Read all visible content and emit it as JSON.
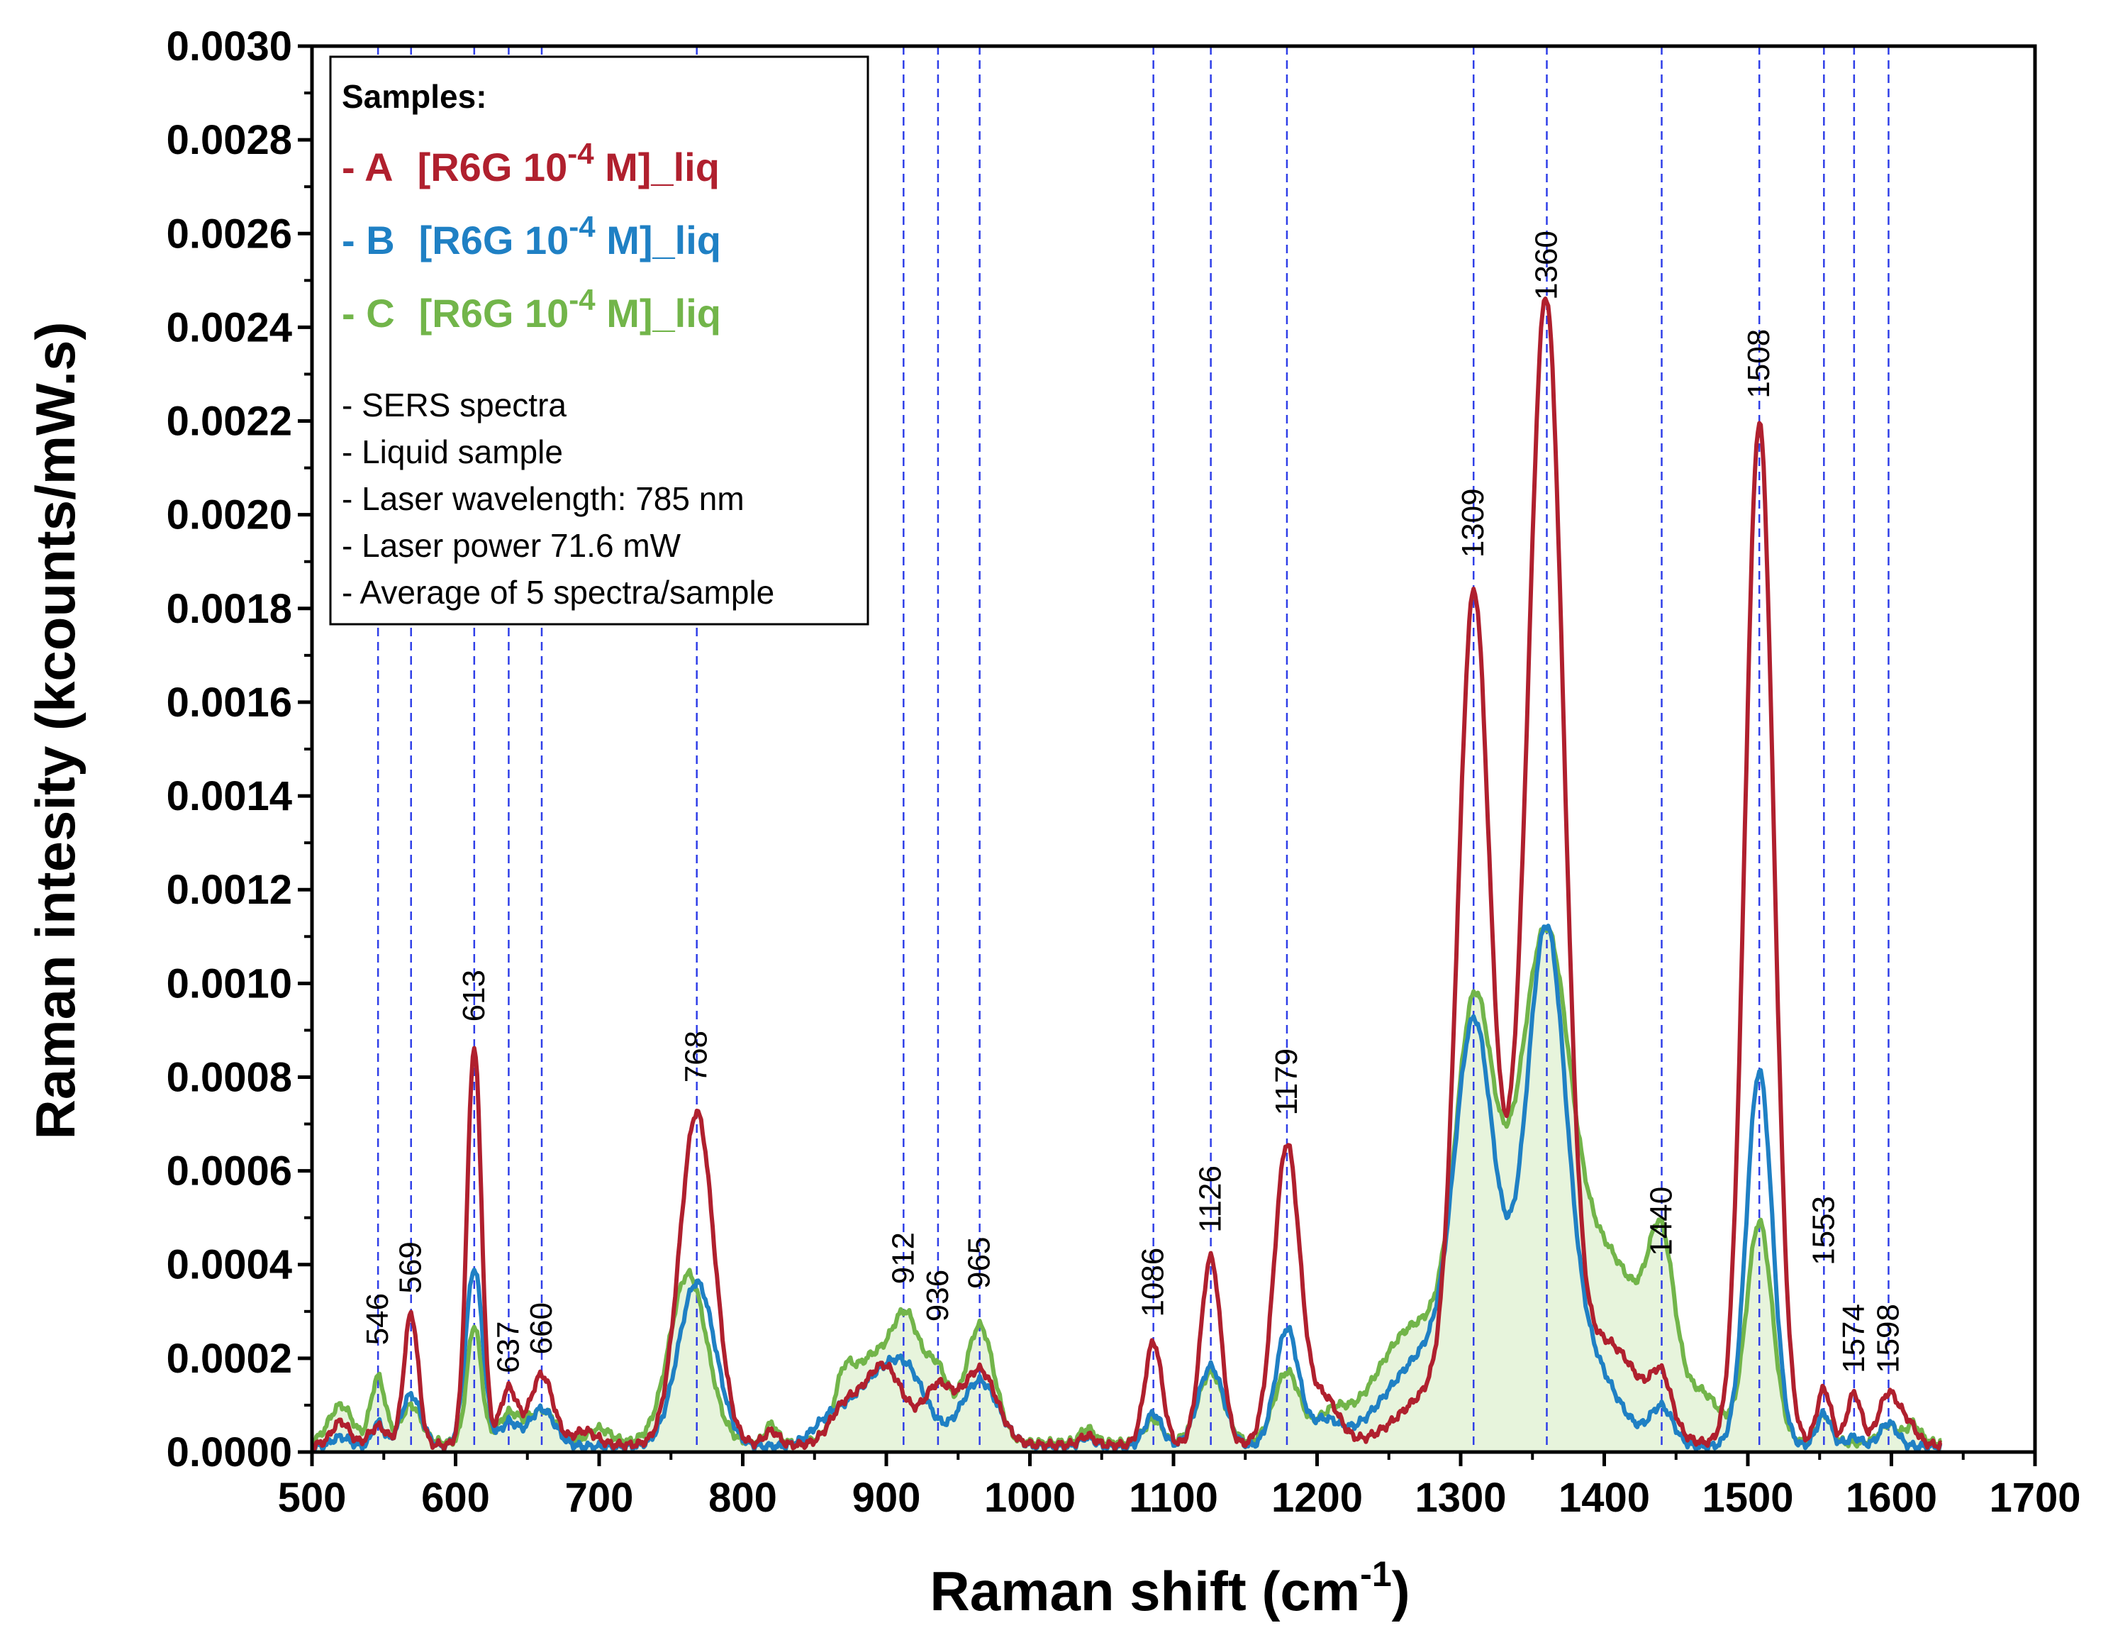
{
  "chart_data": {
    "type": "line",
    "xlabel_main": "Raman shift (cm",
    "xlabel_sup": "-1",
    "xlabel_end": ")",
    "ylabel": "Raman intesity (kcounts/mW.s)",
    "xlim": [
      500,
      1700
    ],
    "ylim": [
      0,
      0.003
    ],
    "x_ticks": [
      "500",
      "600",
      "700",
      "800",
      "900",
      "1000",
      "1100",
      "1200",
      "1300",
      "1400",
      "1500",
      "1600",
      "1700"
    ],
    "y_ticks": [
      "0.0000",
      "0.0002",
      "0.0004",
      "0.0006",
      "0.0008",
      "0.0010",
      "0.0012",
      "0.0014",
      "0.0016",
      "0.0018",
      "0.0020",
      "0.0022",
      "0.0024",
      "0.0026",
      "0.0028",
      "0.0030"
    ],
    "x_range": [
      500,
      1635
    ],
    "fill_series": "C",
    "fill_color": "#e7f4dc",
    "peak_lines": [
      546,
      569,
      613,
      637,
      660,
      768,
      912,
      936,
      965,
      1086,
      1126,
      1179,
      1309,
      1360,
      1440,
      1508,
      1553,
      1574,
      1598
    ],
    "peak_labels": [
      {
        "x": 546,
        "text": "546",
        "y": 0.00021
      },
      {
        "x": 569,
        "text": "569",
        "y": 0.00032
      },
      {
        "x": 613,
        "text": "613",
        "y": 0.0009
      },
      {
        "x": 637,
        "text": "637",
        "y": 0.00015
      },
      {
        "x": 660,
        "text": "660",
        "y": 0.00019
      },
      {
        "x": 768,
        "text": "768",
        "y": 0.00077
      },
      {
        "x": 912,
        "text": "912",
        "y": 0.00034
      },
      {
        "x": 936,
        "text": "936",
        "y": 0.00026
      },
      {
        "x": 965,
        "text": "965",
        "y": 0.00033
      },
      {
        "x": 1086,
        "text": "1086",
        "y": 0.00027
      },
      {
        "x": 1126,
        "text": "1126",
        "y": 0.00045
      },
      {
        "x": 1179,
        "text": "1179",
        "y": 0.0007
      },
      {
        "x": 1309,
        "text": "1309",
        "y": 0.00189
      },
      {
        "x": 1360,
        "text": "1360",
        "y": 0.00244
      },
      {
        "x": 1440,
        "text": "1440",
        "y": 0.0004
      },
      {
        "x": 1508,
        "text": "1508",
        "y": 0.00223
      },
      {
        "x": 1553,
        "text": "1553",
        "y": 0.00038
      },
      {
        "x": 1574,
        "text": "1574",
        "y": 0.00015
      },
      {
        "x": 1598,
        "text": "1598",
        "y": 0.00015
      }
    ],
    "series": [
      {
        "name": "A",
        "color": "#b0202e",
        "baseline": 1.5e-05,
        "peaks": [
          [
            520,
            5e-05,
            6
          ],
          [
            546,
            4e-05,
            6
          ],
          [
            569,
            0.00028,
            5
          ],
          [
            613,
            0.00085,
            5
          ],
          [
            637,
            0.00012,
            6
          ],
          [
            660,
            0.00015,
            8
          ],
          [
            690,
            3e-05,
            8
          ],
          [
            768,
            0.00071,
            12
          ],
          [
            820,
            3e-05,
            5
          ],
          [
            870,
            7e-05,
            10
          ],
          [
            898,
            0.00017,
            14
          ],
          [
            936,
            0.00012,
            10
          ],
          [
            965,
            0.00016,
            12
          ],
          [
            1040,
            2e-05,
            5
          ],
          [
            1086,
            0.00022,
            6
          ],
          [
            1126,
            0.0004,
            7
          ],
          [
            1179,
            0.00064,
            9
          ],
          [
            1205,
            0.0001,
            10
          ],
          [
            1285,
            0.00012,
            25
          ],
          [
            1309,
            0.0017,
            11
          ],
          [
            1360,
            0.00222,
            12
          ],
          [
            1340,
            0.0004,
            15
          ],
          [
            1400,
            0.00022,
            25
          ],
          [
            1440,
            0.0001,
            7
          ],
          [
            1508,
            0.00218,
            10
          ],
          [
            1553,
            0.00012,
            5
          ],
          [
            1574,
            0.00011,
            5
          ],
          [
            1598,
            0.00011,
            7
          ],
          [
            1612,
            4e-05,
            6
          ]
        ]
      },
      {
        "name": "B",
        "color": "#1f80c4",
        "baseline": 1.2e-05,
        "peaks": [
          [
            520,
            2e-05,
            6
          ],
          [
            546,
            5e-05,
            4
          ],
          [
            569,
            0.00011,
            7
          ],
          [
            613,
            0.00038,
            6
          ],
          [
            637,
            5e-05,
            6
          ],
          [
            660,
            8e-05,
            9
          ],
          [
            768,
            0.00035,
            13
          ],
          [
            860,
            5e-05,
            12
          ],
          [
            890,
            0.00012,
            16
          ],
          [
            915,
            0.00014,
            14
          ],
          [
            965,
            0.00014,
            13
          ],
          [
            1040,
            2e-05,
            5
          ],
          [
            1086,
            7e-05,
            6
          ],
          [
            1126,
            0.00017,
            9
          ],
          [
            1179,
            0.00025,
            8
          ],
          [
            1205,
            5e-05,
            10
          ],
          [
            1280,
            0.0002,
            30
          ],
          [
            1309,
            0.0007,
            13
          ],
          [
            1345,
            0.00025,
            25
          ],
          [
            1360,
            0.00085,
            13
          ],
          [
            1390,
            0.00015,
            20
          ],
          [
            1440,
            8e-05,
            8
          ],
          [
            1508,
            0.0008,
            9
          ],
          [
            1553,
            7e-05,
            5
          ],
          [
            1574,
            2e-05,
            5
          ],
          [
            1598,
            5e-05,
            6
          ]
        ]
      },
      {
        "name": "C",
        "color": "#72b54a",
        "baseline": 2e-05,
        "peaks": [
          [
            520,
            8e-05,
            8
          ],
          [
            546,
            0.00014,
            5
          ],
          [
            569,
            8e-05,
            7
          ],
          [
            613,
            0.00025,
            5
          ],
          [
            637,
            6e-05,
            7
          ],
          [
            660,
            7e-05,
            10
          ],
          [
            700,
            3e-05,
            8
          ],
          [
            762,
            0.00036,
            13
          ],
          [
            820,
            4e-05,
            4
          ],
          [
            870,
            8e-05,
            6
          ],
          [
            890,
            0.00018,
            16
          ],
          [
            915,
            0.00022,
            10
          ],
          [
            936,
            0.00014,
            8
          ],
          [
            965,
            0.00025,
            10
          ],
          [
            1040,
            3e-05,
            5
          ],
          [
            1086,
            5e-05,
            6
          ],
          [
            1126,
            0.00015,
            9
          ],
          [
            1179,
            0.00015,
            9
          ],
          [
            1210,
            5e-05,
            10
          ],
          [
            1270,
            0.00025,
            28
          ],
          [
            1309,
            0.00075,
            13
          ],
          [
            1335,
            0.0003,
            18
          ],
          [
            1360,
            0.00082,
            16
          ],
          [
            1400,
            0.0004,
            30
          ],
          [
            1440,
            0.0003,
            9
          ],
          [
            1470,
            8e-05,
            12
          ],
          [
            1508,
            0.00047,
            9
          ],
          [
            1553,
            6e-05,
            5
          ],
          [
            1598,
            4e-05,
            6
          ],
          [
            1615,
            4e-05,
            5
          ]
        ]
      }
    ],
    "legend": {
      "heading": "Samples:",
      "entries": [
        {
          "prefix": "- A",
          "label": "[R6G 10",
          "sup": "-4",
          "suffix": " M]_liq",
          "color": "#b0202e"
        },
        {
          "prefix": "- B",
          "label": "[R6G 10",
          "sup": "-4",
          "suffix": " M]_liq",
          "color": "#1f80c4"
        },
        {
          "prefix": "- C",
          "label": "[R6G 10",
          "sup": "-4",
          "suffix": " M]_liq",
          "color": "#72b54a"
        }
      ],
      "notes": [
        "- SERS spectra",
        "- Liquid sample",
        "- Laser wavelength: 785 nm",
        "- Laser power 71.6 mW",
        "- Average of 5 spectra/sample"
      ]
    },
    "peak_line_color": "#2f3fe8"
  }
}
